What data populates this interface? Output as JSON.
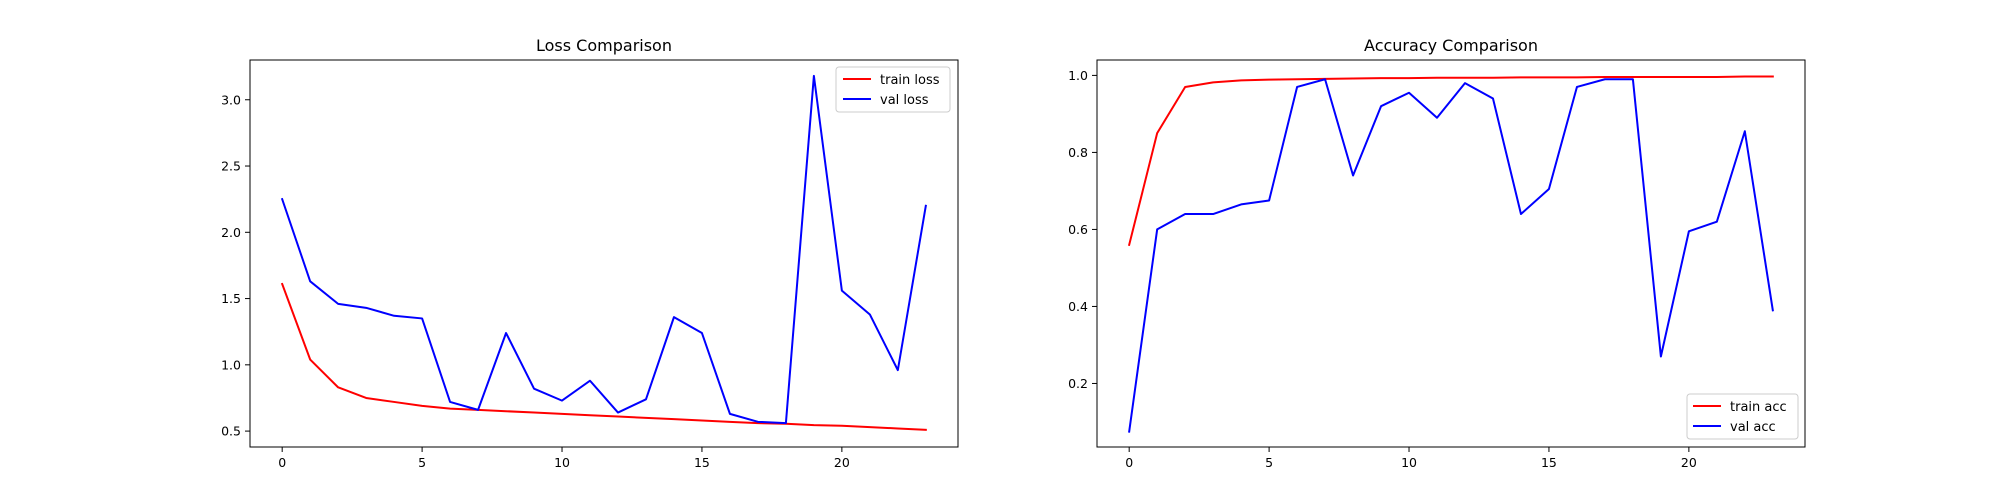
{
  "chart_data": [
    {
      "type": "line",
      "title": "Loss Comparison",
      "xlabel": "",
      "ylabel": "",
      "xlim": [
        -1.15,
        24.15
      ],
      "ylim": [
        0.38,
        3.3
      ],
      "xticks": [
        0,
        5,
        10,
        15,
        20
      ],
      "yticks": [
        0.5,
        1.0,
        1.5,
        2.0,
        2.5,
        3.0
      ],
      "ytick_labels": [
        "0.5",
        "1.0",
        "1.5",
        "2.0",
        "2.5",
        "3.0"
      ],
      "grid": false,
      "legend_position": "upper right",
      "x": [
        0,
        1,
        2,
        3,
        4,
        5,
        6,
        7,
        8,
        9,
        10,
        11,
        12,
        13,
        14,
        15,
        16,
        17,
        18,
        19,
        20,
        21,
        22,
        23
      ],
      "series": [
        {
          "name": "train loss",
          "color": "#ff0000",
          "values": [
            1.61,
            1.04,
            0.83,
            0.75,
            0.72,
            0.69,
            0.67,
            0.66,
            0.65,
            0.64,
            0.63,
            0.62,
            0.61,
            0.6,
            0.59,
            0.58,
            0.57,
            0.56,
            0.555,
            0.545,
            0.54,
            0.53,
            0.52,
            0.51
          ]
        },
        {
          "name": "val loss",
          "color": "#0000ff",
          "values": [
            2.25,
            1.63,
            1.46,
            1.43,
            1.37,
            1.35,
            0.72,
            0.66,
            1.24,
            0.82,
            0.73,
            0.88,
            0.64,
            0.74,
            1.36,
            1.24,
            0.63,
            0.57,
            0.56,
            3.18,
            1.56,
            1.38,
            0.96,
            2.2
          ]
        }
      ]
    },
    {
      "type": "line",
      "title": "Accuracy Comparison",
      "xlabel": "",
      "ylabel": "",
      "xlim": [
        -1.15,
        24.15
      ],
      "ylim": [
        0.035,
        1.04
      ],
      "xticks": [
        0,
        5,
        10,
        15,
        20
      ],
      "yticks": [
        0.2,
        0.4,
        0.6,
        0.8,
        1.0
      ],
      "ytick_labels": [
        "0.2",
        "0.4",
        "0.6",
        "0.8",
        "1.0"
      ],
      "grid": false,
      "legend_position": "lower right",
      "x": [
        0,
        1,
        2,
        3,
        4,
        5,
        6,
        7,
        8,
        9,
        10,
        11,
        12,
        13,
        14,
        15,
        16,
        17,
        18,
        19,
        20,
        21,
        22,
        23
      ],
      "series": [
        {
          "name": "train acc",
          "color": "#ff0000",
          "values": [
            0.56,
            0.85,
            0.97,
            0.982,
            0.987,
            0.989,
            0.99,
            0.991,
            0.992,
            0.993,
            0.993,
            0.994,
            0.994,
            0.994,
            0.995,
            0.995,
            0.995,
            0.996,
            0.996,
            0.996,
            0.996,
            0.996,
            0.997,
            0.997
          ]
        },
        {
          "name": "val acc",
          "color": "#0000ff",
          "values": [
            0.075,
            0.6,
            0.64,
            0.64,
            0.665,
            0.675,
            0.97,
            0.99,
            0.74,
            0.92,
            0.955,
            0.89,
            0.98,
            0.94,
            0.64,
            0.705,
            0.97,
            0.99,
            0.99,
            0.27,
            0.595,
            0.62,
            0.855,
            0.39
          ]
        }
      ]
    }
  ]
}
